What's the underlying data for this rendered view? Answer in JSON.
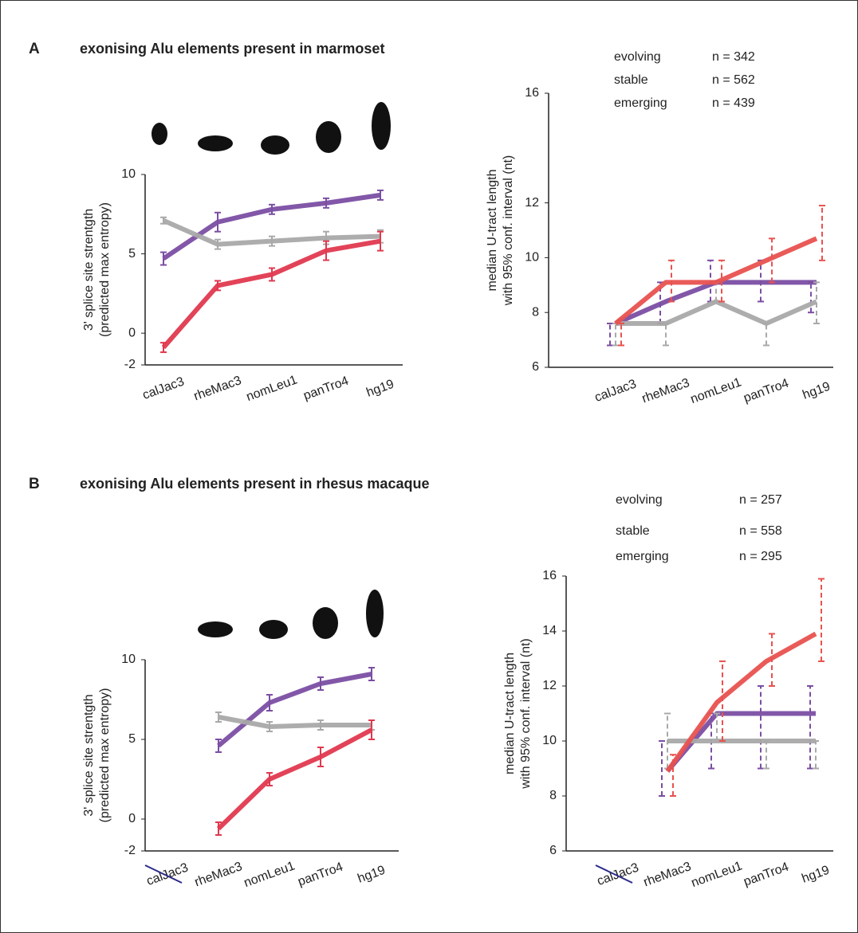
{
  "panels": [
    {
      "label": "A",
      "title": "exonising Alu elements present in marmoset"
    },
    {
      "label": "B",
      "title": "exonising Alu elements present in rhesus macaque"
    }
  ],
  "chart_data": [
    {
      "type": "line",
      "ylabel": [
        "3' splice site strentgth",
        "(predicted max entropy)"
      ],
      "categories": [
        "calJac3",
        "rheMac3",
        "nomLeu1",
        "panTro4",
        "hg19"
      ],
      "ylim": [
        -2,
        10
      ],
      "yticks": [
        -2,
        0,
        5,
        10
      ],
      "series": [
        {
          "name": "evolving",
          "color": "#7b4ea3",
          "values": [
            4.7,
            7.0,
            7.8,
            8.2,
            8.7
          ],
          "errors": [
            0.4,
            0.6,
            0.3,
            0.3,
            0.3
          ]
        },
        {
          "name": "stable",
          "color": "#a9a9a9",
          "values": [
            7.1,
            5.6,
            5.8,
            6.0,
            6.1
          ],
          "errors": [
            0.2,
            0.3,
            0.3,
            0.4,
            0.4
          ]
        },
        {
          "name": "emerging",
          "color": "#e0394f",
          "values": [
            -0.9,
            3.0,
            3.7,
            5.2,
            5.8
          ],
          "errors": [
            0.3,
            0.3,
            0.4,
            0.6,
            0.6
          ]
        }
      ]
    },
    {
      "type": "line",
      "ylabel": [
        "median U-tract length",
        "with 95% conf. interval (nt)"
      ],
      "categories": [
        "calJac3",
        "rheMac3",
        "nomLeu1",
        "panTro4",
        "hg19"
      ],
      "ylim": [
        6,
        16
      ],
      "yticks": [
        6,
        8,
        10,
        12,
        16
      ],
      "series": [
        {
          "name": "evolving",
          "n": "n = 342",
          "color": "#7b4ea3",
          "values": [
            7.6,
            8.4,
            9.1,
            9.1,
            9.1
          ],
          "lower": [
            6.8,
            7.6,
            8.4,
            8.4,
            8.0
          ],
          "upper": [
            7.6,
            9.1,
            9.9,
            9.9,
            9.1
          ]
        },
        {
          "name": "stable",
          "n": "n = 562",
          "color": "#a9a9a9",
          "values": [
            7.6,
            7.6,
            8.4,
            7.6,
            8.4
          ],
          "lower": [
            6.8,
            6.8,
            8.4,
            6.8,
            7.6
          ],
          "upper": [
            7.6,
            7.6,
            9.1,
            7.6,
            9.1
          ]
        },
        {
          "name": "emerging",
          "n": "n = 439",
          "color": "#e8524f",
          "values": [
            7.6,
            9.1,
            9.1,
            9.9,
            10.7
          ],
          "lower": [
            6.8,
            8.4,
            8.4,
            9.1,
            9.9
          ],
          "upper": [
            7.6,
            9.9,
            9.9,
            10.7,
            11.9
          ]
        }
      ]
    },
    {
      "type": "line",
      "ylabel": [
        "3' splice site strentgth",
        "(predicted max entropy)"
      ],
      "categories": [
        "calJac3",
        "rheMac3",
        "nomLeu1",
        "panTro4",
        "hg19"
      ],
      "struck_index": 0,
      "ylim": [
        -2,
        10
      ],
      "yticks": [
        -2,
        0,
        5,
        10
      ],
      "series": [
        {
          "name": "evolving",
          "color": "#7b4ea3",
          "values": [
            null,
            4.6,
            7.3,
            8.5,
            9.1
          ],
          "errors": [
            null,
            0.4,
            0.5,
            0.4,
            0.4
          ]
        },
        {
          "name": "stable",
          "color": "#a9a9a9",
          "values": [
            null,
            6.4,
            5.8,
            5.9,
            5.9
          ],
          "errors": [
            null,
            0.3,
            0.3,
            0.3,
            0.3
          ]
        },
        {
          "name": "emerging",
          "color": "#e0394f",
          "values": [
            null,
            -0.6,
            2.5,
            3.9,
            5.6
          ],
          "errors": [
            null,
            0.4,
            0.4,
            0.6,
            0.6
          ]
        }
      ]
    },
    {
      "type": "line",
      "ylabel": [
        "median U-tract length",
        "with 95% conf. interval (nt)"
      ],
      "categories": [
        "calJac3",
        "rheMac3",
        "nomLeu1",
        "panTro4",
        "hg19"
      ],
      "struck_index": 0,
      "ylim": [
        6,
        16
      ],
      "yticks": [
        6,
        8,
        10,
        12,
        14,
        16
      ],
      "series": [
        {
          "name": "evolving",
          "n": "n = 257",
          "color": "#7b4ea3",
          "values": [
            null,
            8.9,
            11.0,
            11.0,
            11.0
          ],
          "lower": [
            null,
            8.0,
            9.0,
            9.0,
            9.0
          ],
          "upper": [
            null,
            10.0,
            11.0,
            12.0,
            12.0
          ]
        },
        {
          "name": "stable",
          "n": "n = 558",
          "color": "#a9a9a9",
          "values": [
            null,
            10.0,
            10.0,
            10.0,
            10.0
          ],
          "lower": [
            null,
            9.0,
            10.0,
            9.0,
            9.0
          ],
          "upper": [
            null,
            11.0,
            11.0,
            10.0,
            10.0
          ]
        },
        {
          "name": "emerging",
          "n": "n = 295",
          "color": "#e8524f",
          "values": [
            null,
            8.9,
            11.4,
            12.9,
            13.9
          ],
          "lower": [
            null,
            8.0,
            10.0,
            12.0,
            12.9
          ],
          "upper": [
            null,
            9.5,
            12.9,
            13.9,
            15.9
          ]
        }
      ]
    }
  ]
}
